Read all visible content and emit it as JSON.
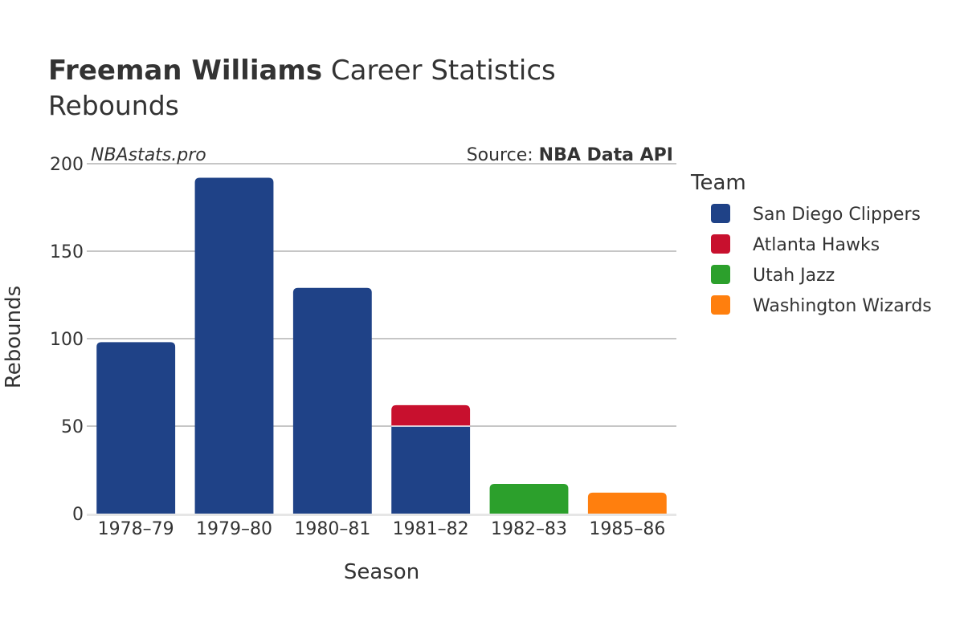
{
  "header": {
    "title_bold": "Freeman Williams",
    "title_rest": " Career Statistics",
    "subtitle": "Rebounds"
  },
  "credits": {
    "site": "NBAstats.pro",
    "source_prefix": "Source: ",
    "source_name": "NBA Data API"
  },
  "chart_data": {
    "type": "bar",
    "stacked": true,
    "xlabel": "Season",
    "ylabel": "Rebounds",
    "ylim": [
      0,
      200
    ],
    "yticks": [
      0,
      50,
      100,
      150,
      200
    ],
    "grid": true,
    "legend_title": "Team",
    "legend_position": "right",
    "categories": [
      "1978–79",
      "1979–80",
      "1980–81",
      "1981–82",
      "1982–83",
      "1985–86"
    ],
    "series": [
      {
        "name": "San Diego Clippers",
        "color": "#1f4287",
        "values": [
          98,
          192,
          129,
          50,
          0,
          0
        ]
      },
      {
        "name": "Atlanta Hawks",
        "color": "#c8102e",
        "values": [
          0,
          0,
          0,
          12,
          0,
          0
        ]
      },
      {
        "name": "Utah Jazz",
        "color": "#2ca02c",
        "values": [
          0,
          0,
          0,
          0,
          17,
          0
        ]
      },
      {
        "name": "Washington Wizards",
        "color": "#ff7f0e",
        "values": [
          0,
          0,
          0,
          0,
          0,
          12
        ]
      }
    ]
  }
}
